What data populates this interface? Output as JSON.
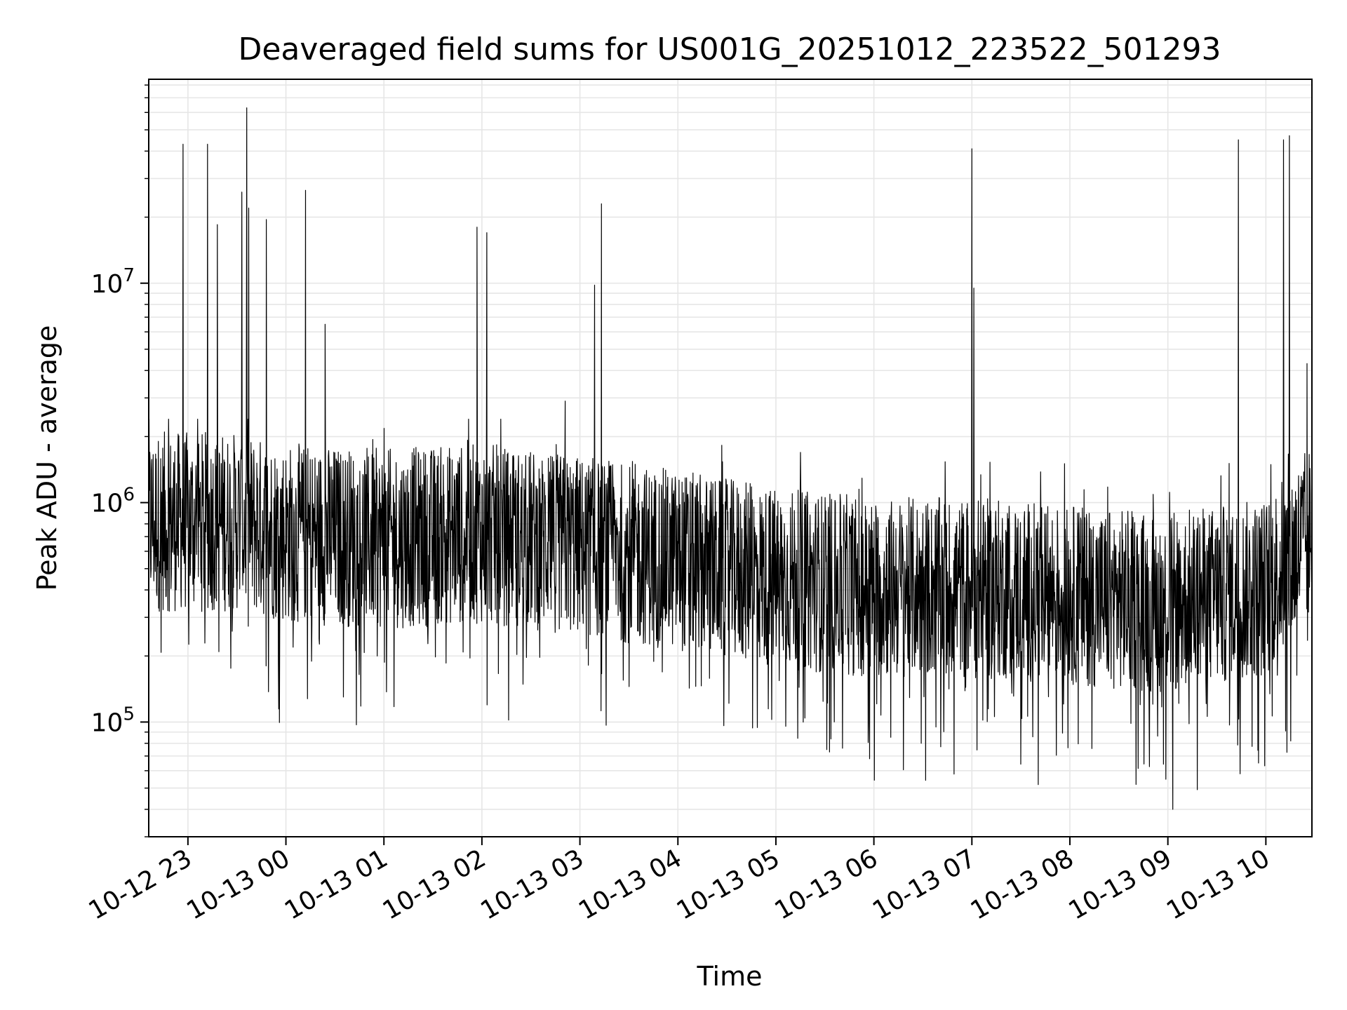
{
  "chart_data": {
    "type": "line",
    "title": "Deaveraged field sums for US001G_20251012_223522_501293",
    "xlabel": "Time",
    "ylabel": "Peak ADU - average",
    "yscale": "log",
    "ylim": [
      30000,
      85000000
    ],
    "xlim_hours": [
      -1.4,
      10.47
    ],
    "grid": true,
    "line_color": "#000000",
    "x_ticks": [
      {
        "label": "10-12 23",
        "hours": -1
      },
      {
        "label": "10-13 00",
        "hours": 0
      },
      {
        "label": "10-13 01",
        "hours": 1
      },
      {
        "label": "10-13 02",
        "hours": 2
      },
      {
        "label": "10-13 03",
        "hours": 3
      },
      {
        "label": "10-13 04",
        "hours": 4
      },
      {
        "label": "10-13 05",
        "hours": 5
      },
      {
        "label": "10-13 06",
        "hours": 6
      },
      {
        "label": "10-13 07",
        "hours": 7
      },
      {
        "label": "10-13 08",
        "hours": 8
      },
      {
        "label": "10-13 09",
        "hours": 9
      },
      {
        "label": "10-13 10",
        "hours": 10
      }
    ],
    "y_ticks": [
      {
        "base": "10",
        "exp": "5",
        "value": 100000
      },
      {
        "base": "10",
        "exp": "6",
        "value": 1000000
      },
      {
        "base": "10",
        "exp": "7",
        "value": 10000000
      }
    ],
    "series": [
      {
        "name": "Peak ADU - average",
        "baseline": [
          [
            -1.4,
            900000
          ],
          [
            -0.5,
            900000
          ],
          [
            0.0,
            800000
          ],
          [
            1.0,
            750000
          ],
          [
            2.0,
            800000
          ],
          [
            3.0,
            700000
          ],
          [
            4.0,
            600000
          ],
          [
            5.0,
            500000
          ],
          [
            6.0,
            450000
          ],
          [
            7.0,
            450000
          ],
          [
            8.0,
            420000
          ],
          [
            9.0,
            380000
          ],
          [
            10.0,
            450000
          ],
          [
            10.47,
            800000
          ]
        ],
        "spikes": [
          [
            -1.05,
            43000000
          ],
          [
            -0.8,
            43000000
          ],
          [
            -0.7,
            18500000
          ],
          [
            -0.45,
            26000000
          ],
          [
            -0.4,
            63000000
          ],
          [
            -0.38,
            22000000
          ],
          [
            -0.2,
            19500000
          ],
          [
            0.2,
            26500000
          ],
          [
            0.4,
            6500000
          ],
          [
            1.95,
            18000000
          ],
          [
            2.05,
            17000000
          ],
          [
            2.85,
            2900000
          ],
          [
            3.15,
            9800000
          ],
          [
            3.22,
            23000000
          ],
          [
            7.0,
            41000000
          ],
          [
            7.02,
            9500000
          ],
          [
            9.72,
            45000000
          ],
          [
            10.18,
            45000000
          ],
          [
            10.24,
            47000000
          ],
          [
            10.42,
            4300000
          ]
        ],
        "minimum": [
          9.05,
          40000
        ]
      }
    ]
  }
}
